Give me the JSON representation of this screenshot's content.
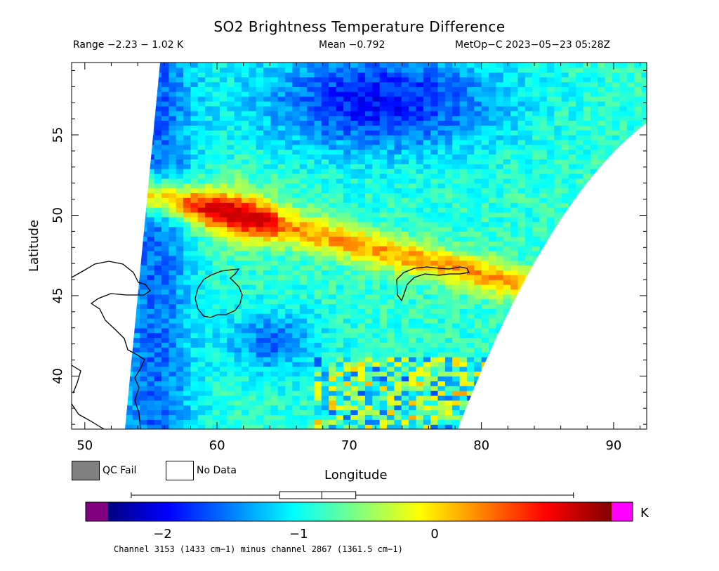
{
  "header": {
    "title": "SO2 Brightness Temperature Difference",
    "range_text": "Range −2.23 − 1.02 K",
    "mean_text": "Mean −0.792",
    "satellite_text": "MetOp−C 2023−05−23 05:28Z"
  },
  "legend": {
    "qc_fail_label": "QC Fail",
    "no_data_label": "No Data",
    "qc_fail_color": "#808080",
    "no_data_color": "#ffffff"
  },
  "colorbar": {
    "unit": "K",
    "min": -2.4,
    "max": 1.3,
    "ticks": [
      {
        "value": -2,
        "label": "−2"
      },
      {
        "value": -1,
        "label": "−1"
      },
      {
        "value": 0,
        "label": "0"
      }
    ],
    "under_color": "#800080",
    "over_color": "#ff00ff",
    "boxplot": {
      "min": -2.23,
      "q1": -1.14,
      "median": -0.83,
      "q3": -0.58,
      "max": 1.02
    }
  },
  "caption": "Channel 3153 (1433 cm−1) minus channel 2867 (1361.5 cm−1)",
  "chart_data": {
    "type": "heatmap",
    "title": "SO2 Brightness Temperature Difference",
    "xlabel": "Longitude",
    "ylabel": "Latitude",
    "xlim": [
      49,
      92.5
    ],
    "ylim": [
      36.7,
      59.5
    ],
    "xticks": [
      50,
      60,
      70,
      80,
      90
    ],
    "yticks": [
      40,
      45,
      50,
      55
    ],
    "value_range": [
      -2.23,
      1.02
    ],
    "mean": -0.792,
    "unit": "K",
    "features": [
      {
        "name": "enhanced band",
        "from": [
          58,
          50.5
        ],
        "to": [
          83,
          45.5
        ],
        "value": 0.6
      },
      {
        "name": "low region north",
        "center": [
          72,
          57
        ],
        "value": -1.9
      },
      {
        "name": "low region south",
        "center": [
          64,
          42
        ],
        "value": -1.7
      }
    ]
  }
}
